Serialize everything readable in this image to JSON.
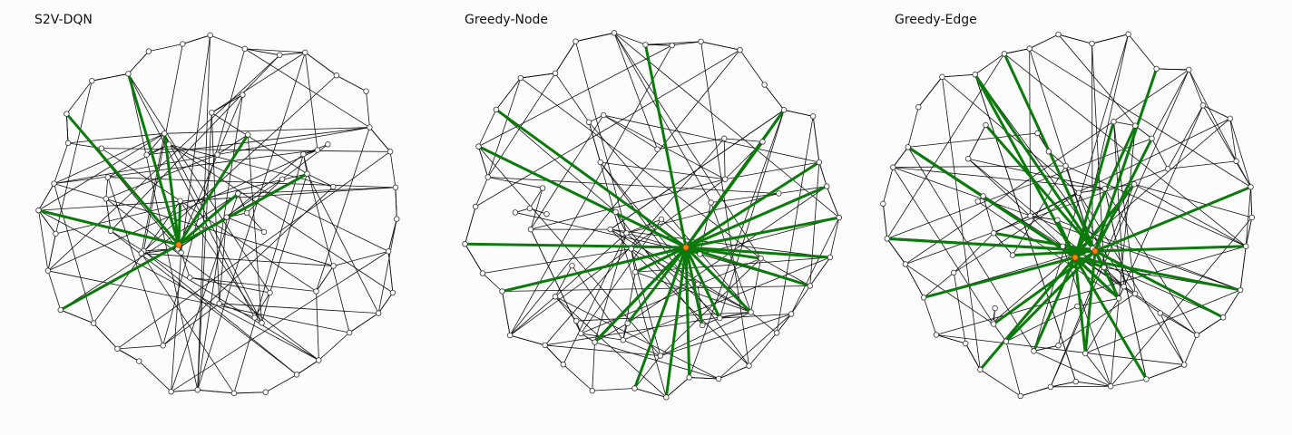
{
  "colors": {
    "edge": "#111111",
    "solution_edge": "#0a7a0a",
    "node_fill": "#ffffff",
    "node_stroke": "#333333",
    "selected_node": "#f08a00",
    "selected_node_stroke": "#cc2200",
    "background": "#fdfcfd"
  },
  "panels": [
    {
      "title": "S2V-DQN"
    },
    {
      "title": "Greedy-Node"
    },
    {
      "title": "Greedy-Edge"
    }
  ]
}
